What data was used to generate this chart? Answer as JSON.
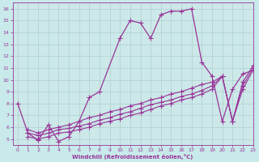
{
  "xlabel": "Windchill (Refroidissement éolien,°C)",
  "ylabel": "",
  "bg_color": "#c8eaea",
  "plot_bg_color": "#cce8e8",
  "line_color": "#993399",
  "grid_color": "#b0d0d0",
  "xlim": [
    -0.5,
    23
  ],
  "ylim": [
    4.5,
    16.5
  ],
  "xticks": [
    0,
    1,
    2,
    3,
    4,
    5,
    6,
    7,
    8,
    9,
    10,
    11,
    12,
    13,
    14,
    15,
    16,
    17,
    18,
    19,
    20,
    21,
    22,
    23
  ],
  "yticks": [
    5,
    6,
    7,
    8,
    9,
    10,
    11,
    12,
    13,
    14,
    15,
    16
  ],
  "series": [
    {
      "x": [
        0,
        1,
        2,
        3,
        4,
        5,
        6,
        7,
        8,
        10,
        11,
        12,
        13,
        14,
        15,
        16,
        17,
        18,
        19,
        20,
        21,
        22,
        23
      ],
      "y": [
        8.0,
        5.5,
        4.9,
        6.2,
        4.8,
        5.2,
        6.5,
        8.5,
        9.0,
        13.5,
        15.0,
        14.8,
        13.5,
        15.5,
        15.8,
        15.8,
        16.0,
        11.5,
        10.3,
        6.5,
        9.2,
        10.5,
        10.8
      ],
      "marker": "+",
      "markersize": 5,
      "linewidth": 0.9,
      "linestyle": "-"
    },
    {
      "x": [
        1,
        2,
        3,
        4,
        5,
        6,
        7,
        8,
        9,
        10,
        11,
        12,
        13,
        14,
        15,
        16,
        17,
        18,
        19,
        20,
        21,
        22,
        23
      ],
      "y": [
        5.2,
        5.0,
        5.2,
        5.5,
        5.6,
        5.8,
        6.0,
        6.3,
        6.5,
        6.7,
        7.0,
        7.2,
        7.5,
        7.8,
        8.0,
        8.3,
        8.5,
        8.8,
        9.2,
        10.3,
        6.5,
        9.2,
        10.8
      ],
      "marker": "+",
      "markersize": 4,
      "linewidth": 0.8,
      "linestyle": "-"
    },
    {
      "x": [
        1,
        2,
        3,
        4,
        5,
        6,
        7,
        8,
        9,
        10,
        11,
        12,
        13,
        14,
        15,
        16,
        17,
        18,
        19,
        20,
        21,
        22,
        23
      ],
      "y": [
        5.5,
        5.3,
        5.5,
        5.8,
        5.9,
        6.1,
        6.3,
        6.6,
        6.8,
        7.1,
        7.3,
        7.6,
        7.9,
        8.1,
        8.3,
        8.6,
        8.8,
        9.1,
        9.5,
        10.3,
        6.5,
        9.5,
        11.0
      ],
      "marker": "+",
      "markersize": 4,
      "linewidth": 0.8,
      "linestyle": "-"
    },
    {
      "x": [
        1,
        2,
        3,
        4,
        5,
        6,
        7,
        8,
        9,
        10,
        11,
        12,
        13,
        14,
        15,
        16,
        17,
        18,
        19,
        20,
        21,
        22,
        23
      ],
      "y": [
        5.8,
        5.5,
        5.8,
        6.0,
        6.2,
        6.5,
        6.8,
        7.0,
        7.3,
        7.5,
        7.8,
        8.0,
        8.3,
        8.5,
        8.8,
        9.0,
        9.3,
        9.6,
        9.8,
        10.3,
        6.5,
        9.8,
        11.2
      ],
      "marker": "+",
      "markersize": 4,
      "linewidth": 0.8,
      "linestyle": "-"
    }
  ]
}
